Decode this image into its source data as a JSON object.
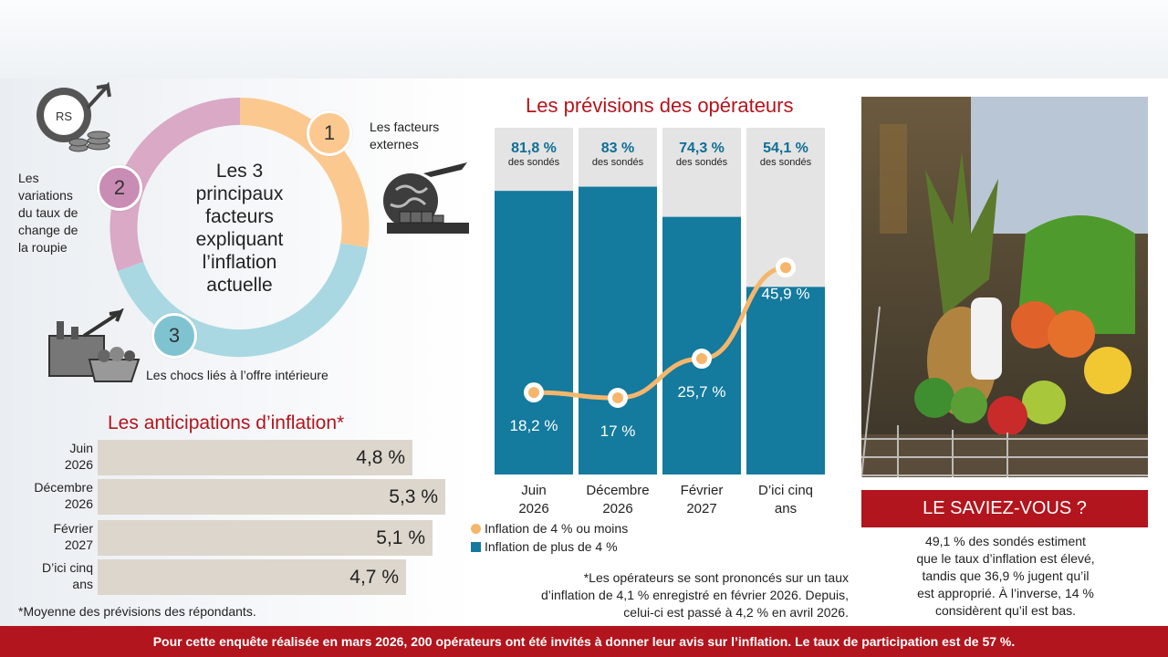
{
  "donut": {
    "center_text": [
      "Les 3",
      "principaux",
      "facteurs",
      "expliquant",
      "l’inflation",
      "actuelle"
    ],
    "factors": [
      {
        "number": "1",
        "label": [
          "Les facteurs",
          "externes"
        ],
        "color": "#fbc98f"
      },
      {
        "number": "2",
        "label": [
          "Les",
          "variations",
          "du taux de",
          "change de",
          "la roupie"
        ],
        "color": "#d9a9c6"
      },
      {
        "number": "3",
        "label": [
          "Les chocs liés à l’offre intérieure"
        ],
        "color": "#a9d8e2"
      }
    ],
    "icon_badge": "RS"
  },
  "anticipations": {
    "title": "Les anticipations d’inflation*",
    "rows": [
      {
        "label": [
          "Juin",
          "2026"
        ],
        "value": 4.8,
        "value_text": "4,8 %"
      },
      {
        "label": [
          "Décembre",
          "2026"
        ],
        "value": 5.3,
        "value_text": "5,3 %"
      },
      {
        "label": [
          "Février",
          "2027"
        ],
        "value": 5.1,
        "value_text": "5,1 %"
      },
      {
        "label": [
          "D’ici cinq",
          "ans"
        ],
        "value": 4.7,
        "value_text": "4,7 %"
      }
    ],
    "note": "*Moyenne des prévisions des répondants."
  },
  "chart_data": {
    "type": "bar",
    "title": "Les prévisions des opérateurs",
    "categories": [
      [
        "Juin",
        "2026"
      ],
      [
        "Décembre",
        "2026"
      ],
      [
        "Février",
        "2027"
      ],
      [
        "D’ici cinq",
        "ans"
      ]
    ],
    "series": [
      {
        "name": "Inflation de plus de 4 %",
        "type": "bar",
        "color": "#147a9e",
        "values": [
          81.8,
          83,
          74.3,
          54.1
        ],
        "labels": [
          "81,8 %",
          "83 %",
          "74,3 %",
          "54,1 %"
        ],
        "sublabel": "des sondés"
      },
      {
        "name": "Inflation de 4 % ou moins",
        "type": "line",
        "color": "#f5b66c",
        "values": [
          18.2,
          17,
          25.7,
          45.9
        ],
        "labels": [
          "18,2 %",
          "17 %",
          "25,7 %",
          "45,9 %"
        ]
      }
    ],
    "ylim": [
      0,
      100
    ],
    "background_color": "#e4e4e4",
    "note": [
      "*Les opérateurs se sont prononcés sur un taux",
      "d’inflation de 4,1 % enregistré en février 2026. Depuis,",
      "celui-ci est passé à 4,2 % en avril 2026."
    ]
  },
  "saviez": {
    "title": "LE SAVIEZ-VOUS ?",
    "text": [
      "49,1 % des sondés estiment",
      "que le taux d’inflation est élevé,",
      "tandis que 36,9 % jugent qu’il",
      "est approprié. À l’inverse, 14 %",
      "considèrent qu’il est bas."
    ]
  },
  "footer": "Pour cette enquête réalisée en mars 2026, 200 opérateurs ont été invités à donner leur avis sur l’inflation. Le taux de participation est de 57 %.",
  "colors": {
    "accent": "#b2151d",
    "bar_blue": "#147a9e",
    "line_orange": "#f5b66c",
    "antic_bar": "#dcd6cc"
  }
}
